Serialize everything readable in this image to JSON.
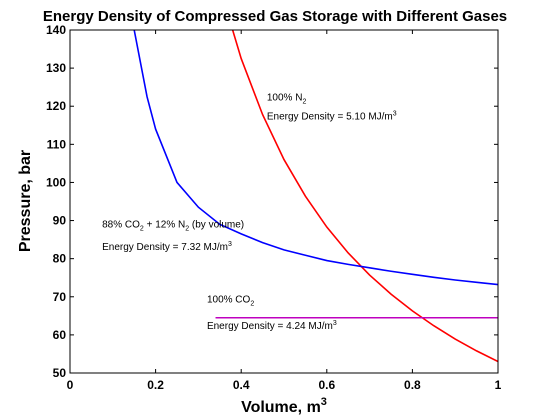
{
  "chart_data": {
    "type": "line",
    "title": "Energy Density of Compressed Gas Storage with Different Gases",
    "xlabel": "Volume, m",
    "xlabel_sup": "3",
    "ylabel": "Pressure, bar",
    "xlim": [
      0,
      1
    ],
    "ylim": [
      50,
      140
    ],
    "x_ticks": [
      0,
      0.2,
      0.4,
      0.6,
      0.8,
      1
    ],
    "x_tick_labels": [
      "0",
      "0.2",
      "0.4",
      "0.6",
      "0.8",
      "1"
    ],
    "y_ticks": [
      50,
      60,
      70,
      80,
      90,
      100,
      110,
      120,
      130,
      140
    ],
    "y_tick_labels": [
      "50",
      "60",
      "70",
      "80",
      "90",
      "100",
      "110",
      "120",
      "130",
      "140"
    ],
    "grid": false,
    "series": [
      {
        "color": "#ff0000",
        "x": [
          0.38,
          0.4,
          0.45,
          0.5,
          0.55,
          0.6,
          0.65,
          0.7,
          0.75,
          0.8,
          0.85,
          0.9,
          0.95,
          1.0
        ],
        "y": [
          140,
          132.5,
          117.8,
          106.0,
          96.4,
          88.3,
          81.5,
          75.7,
          70.7,
          66.3,
          62.4,
          58.9,
          55.8,
          53.0
        ]
      },
      {
        "color": "#0000ff",
        "x": [
          0.15,
          0.18,
          0.2,
          0.25,
          0.3,
          0.35,
          0.4,
          0.45,
          0.5,
          0.55,
          0.6,
          0.65,
          0.7,
          0.75,
          0.8,
          0.85,
          0.9,
          0.95,
          1.0
        ],
        "y": [
          140,
          122.5,
          114.0,
          100.0,
          93.5,
          89.0,
          86.5,
          84.2,
          82.3,
          80.9,
          79.5,
          78.5,
          77.6,
          76.7,
          75.9,
          75.1,
          74.4,
          73.8,
          73.2
        ]
      },
      {
        "color": "#bf00bf",
        "x": [
          0.34,
          1.0
        ],
        "y": [
          64.5,
          64.5
        ]
      }
    ],
    "annotations": [
      {
        "name": "n2-label",
        "main": "100% N",
        "sub": "2",
        "tail": "",
        "x": 0.46,
        "y": 121.5
      },
      {
        "name": "n2-energy",
        "main": "Energy Density = 5.10 MJ/m",
        "sup": "3",
        "x": 0.46,
        "y": 116.5
      },
      {
        "name": "co2n2-label",
        "main": "88% CO",
        "sub": "2",
        "mid": " + 12% N",
        "sub2": "2",
        "tail": " (by volume)",
        "x": 0.075,
        "y": 88.2
      },
      {
        "name": "co2n2-energy",
        "main": "Energy Density = 7.32 MJ/m",
        "sup": "3",
        "x": 0.075,
        "y": 82.3
      },
      {
        "name": "co2-label",
        "main": "100% CO",
        "sub": "2",
        "tail": "",
        "x": 0.32,
        "y": 68.5
      },
      {
        "name": "co2-energy",
        "main": "Energy Density = 4.24 MJ/m",
        "sup": "3",
        "x": 0.32,
        "y": 61.6
      }
    ]
  }
}
